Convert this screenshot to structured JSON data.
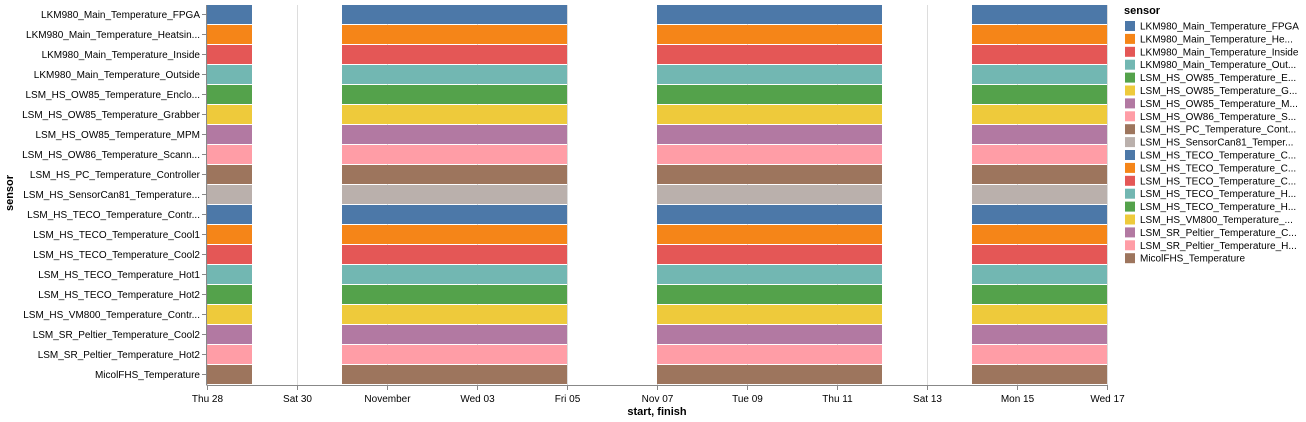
{
  "chart_data": {
    "type": "gantt",
    "xlabel": "start, finish",
    "ylabel": "sensor",
    "x_range": [
      "2021-10-28",
      "2021-11-17"
    ],
    "x_ticks": [
      {
        "date": "2021-10-28",
        "label": "Thu 28"
      },
      {
        "date": "2021-10-30",
        "label": "Sat 30"
      },
      {
        "date": "2021-11-01",
        "label": "November"
      },
      {
        "date": "2021-11-03",
        "label": "Wed 03"
      },
      {
        "date": "2021-11-05",
        "label": "Fri 05"
      },
      {
        "date": "2021-11-07",
        "label": "Nov 07"
      },
      {
        "date": "2021-11-09",
        "label": "Tue 09"
      },
      {
        "date": "2021-11-11",
        "label": "Thu 11"
      },
      {
        "date": "2021-11-13",
        "label": "Sat 13"
      },
      {
        "date": "2021-11-15",
        "label": "Mon 15"
      },
      {
        "date": "2021-11-17",
        "label": "Wed 17"
      }
    ],
    "grid": true,
    "legend": {
      "title": "sensor",
      "placement": "right"
    },
    "intervals": [
      {
        "start": "2021-10-28",
        "finish": "2021-10-29"
      },
      {
        "start": "2021-10-31",
        "finish": "2021-11-05"
      },
      {
        "start": "2021-11-07",
        "finish": "2021-11-12"
      },
      {
        "start": "2021-11-14",
        "finish": "2021-11-17"
      }
    ],
    "series": [
      {
        "name": "LKM980_Main_Temperature_FPGA",
        "axis_label": "LKM980_Main_Temperature_FPGA",
        "legend_label": "LKM980_Main_Temperature_FPGA",
        "color": "#4c78a8"
      },
      {
        "name": "LKM980_Main_Temperature_Heatsink",
        "axis_label": "LKM980_Main_Temperature_Heatsin...",
        "legend_label": "LKM980_Main_Temperature_He...",
        "color": "#f58518"
      },
      {
        "name": "LKM980_Main_Temperature_Inside",
        "axis_label": "LKM980_Main_Temperature_Inside",
        "legend_label": "LKM980_Main_Temperature_Inside",
        "color": "#e45756"
      },
      {
        "name": "LKM980_Main_Temperature_Outside",
        "axis_label": "LKM980_Main_Temperature_Outside",
        "legend_label": "LKM980_Main_Temperature_Out...",
        "color": "#72b7b2"
      },
      {
        "name": "LSM_HS_OW85_Temperature_Enclosure",
        "axis_label": "LSM_HS_OW85_Temperature_Enclo...",
        "legend_label": "LSM_HS_OW85_Temperature_E...",
        "color": "#54a24b"
      },
      {
        "name": "LSM_HS_OW85_Temperature_Grabber",
        "axis_label": "LSM_HS_OW85_Temperature_Grabber",
        "legend_label": "LSM_HS_OW85_Temperature_G...",
        "color": "#eeca3b"
      },
      {
        "name": "LSM_HS_OW85_Temperature_MPM",
        "axis_label": "LSM_HS_OW85_Temperature_MPM",
        "legend_label": "LSM_HS_OW85_Temperature_M...",
        "color": "#b279a2"
      },
      {
        "name": "LSM_HS_OW86_Temperature_Scanner",
        "axis_label": "LSM_HS_OW86_Temperature_Scann...",
        "legend_label": "LSM_HS_OW86_Temperature_S...",
        "color": "#ff9da6"
      },
      {
        "name": "LSM_HS_PC_Temperature_Controller",
        "axis_label": "LSM_HS_PC_Temperature_Controller",
        "legend_label": "LSM_HS_PC_Temperature_Cont...",
        "color": "#9d755d"
      },
      {
        "name": "LSM_HS_SensorCan81_Temperature",
        "axis_label": "LSM_HS_SensorCan81_Temperature...",
        "legend_label": "LSM_HS_SensorCan81_Temper...",
        "color": "#bab0ac"
      },
      {
        "name": "LSM_HS_TECO_Temperature_Controller",
        "axis_label": "LSM_HS_TECO_Temperature_Contr...",
        "legend_label": "LSM_HS_TECO_Temperature_C...",
        "color": "#4c78a8"
      },
      {
        "name": "LSM_HS_TECO_Temperature_Cool1",
        "axis_label": "LSM_HS_TECO_Temperature_Cool1",
        "legend_label": "LSM_HS_TECO_Temperature_C...",
        "color": "#f58518"
      },
      {
        "name": "LSM_HS_TECO_Temperature_Cool2",
        "axis_label": "LSM_HS_TECO_Temperature_Cool2",
        "legend_label": "LSM_HS_TECO_Temperature_C...",
        "color": "#e45756"
      },
      {
        "name": "LSM_HS_TECO_Temperature_Hot1",
        "axis_label": "LSM_HS_TECO_Temperature_Hot1",
        "legend_label": "LSM_HS_TECO_Temperature_H...",
        "color": "#72b7b2"
      },
      {
        "name": "LSM_HS_TECO_Temperature_Hot2",
        "axis_label": "LSM_HS_TECO_Temperature_Hot2",
        "legend_label": "LSM_HS_TECO_Temperature_H...",
        "color": "#54a24b"
      },
      {
        "name": "LSM_HS_VM800_Temperature_Controller",
        "axis_label": "LSM_HS_VM800_Temperature_Contr...",
        "legend_label": "LSM_HS_VM800_Temperature_...",
        "color": "#eeca3b"
      },
      {
        "name": "LSM_SR_Peltier_Temperature_Cool2",
        "axis_label": "LSM_SR_Peltier_Temperature_Cool2",
        "legend_label": "LSM_SR_Peltier_Temperature_C...",
        "color": "#b279a2"
      },
      {
        "name": "LSM_SR_Peltier_Temperature_Hot2",
        "axis_label": "LSM_SR_Peltier_Temperature_Hot2",
        "legend_label": "LSM_SR_Peltier_Temperature_H...",
        "color": "#ff9da6"
      },
      {
        "name": "MicolFHS_Temperature",
        "axis_label": "MicolFHS_Temperature",
        "legend_label": "MicolFHS_Temperature",
        "color": "#9d755d"
      }
    ]
  }
}
